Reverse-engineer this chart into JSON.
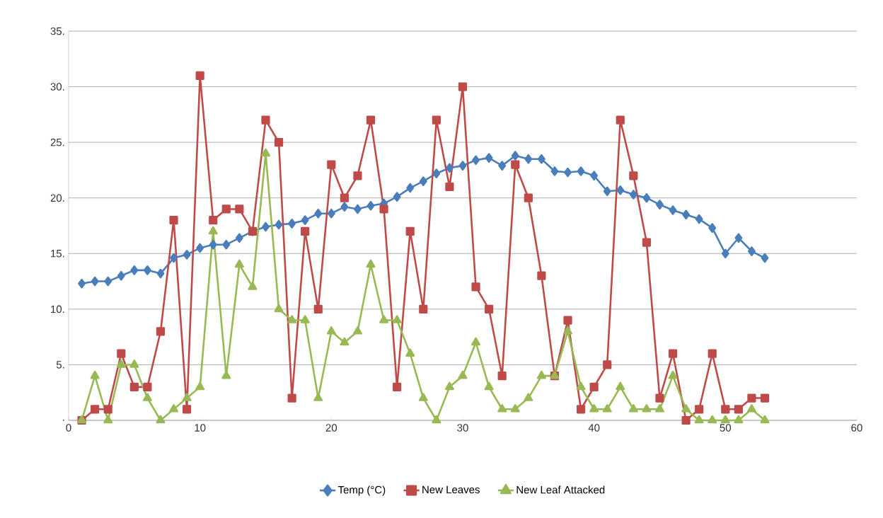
{
  "chart_data": {
    "type": "line",
    "x": [
      1,
      2,
      3,
      4,
      5,
      6,
      7,
      8,
      9,
      10,
      11,
      12,
      13,
      14,
      15,
      16,
      17,
      18,
      19,
      20,
      21,
      22,
      23,
      24,
      25,
      26,
      27,
      28,
      29,
      30,
      31,
      32,
      33,
      34,
      35,
      36,
      37,
      38,
      39,
      40,
      41,
      42,
      43,
      44,
      45,
      46,
      47,
      48,
      49,
      50,
      51,
      52,
      53
    ],
    "series": [
      {
        "name": "Temp (°C)",
        "color": "#4a7ebb",
        "marker": "diamond",
        "values": [
          12.3,
          12.5,
          12.5,
          13.0,
          13.5,
          13.5,
          13.2,
          14.6,
          14.9,
          15.5,
          15.8,
          15.8,
          16.4,
          17.0,
          17.4,
          17.6,
          17.7,
          18.0,
          18.6,
          18.6,
          19.2,
          19.0,
          19.3,
          19.5,
          20.1,
          20.9,
          21.5,
          22.2,
          22.7,
          22.9,
          23.4,
          23.6,
          22.9,
          23.8,
          23.5,
          23.5,
          22.4,
          22.3,
          22.4,
          22.0,
          20.6,
          20.7,
          20.3,
          20.0,
          19.4,
          18.9,
          18.5,
          18.1,
          17.3,
          15.0,
          16.4,
          15.2,
          14.6
        ]
      },
      {
        "name": "New Leaves",
        "color": "#be4b48",
        "marker": "square",
        "values": [
          0,
          1,
          1,
          6,
          3,
          3,
          8,
          18,
          1,
          31,
          18,
          19,
          19,
          17,
          27,
          25,
          2,
          17,
          10,
          23,
          20,
          22,
          27,
          19,
          3,
          17,
          10,
          27,
          21,
          30,
          12,
          10,
          4,
          23,
          20,
          13,
          4,
          9,
          1,
          3,
          5,
          27,
          22,
          16,
          2,
          6,
          0,
          1,
          6,
          1,
          1,
          2,
          2
        ]
      },
      {
        "name": "New Leaf Attacked",
        "color": "#98b954",
        "marker": "triangle",
        "values": [
          0,
          4,
          0,
          5,
          5,
          2,
          0,
          1,
          2,
          3,
          17,
          4,
          14,
          12,
          24,
          10,
          9,
          9,
          2,
          8,
          7,
          8,
          14,
          9,
          9,
          6,
          2,
          0,
          3,
          4,
          7,
          3,
          1,
          1,
          2,
          4,
          4,
          8,
          3,
          1,
          1,
          3,
          1,
          1,
          1,
          4,
          1,
          0,
          0,
          0,
          0,
          1,
          0
        ]
      }
    ],
    "xlim": [
      0,
      60
    ],
    "xticks": [
      0,
      10,
      20,
      30,
      40,
      50,
      60
    ],
    "ylim": [
      0,
      35
    ],
    "yticks": [
      {
        "value": 0,
        "label": "."
      },
      {
        "value": 5,
        "label": "5."
      },
      {
        "value": 10,
        "label": "10."
      },
      {
        "value": 15,
        "label": "15."
      },
      {
        "value": 20,
        "label": "20."
      },
      {
        "value": 25,
        "label": "25."
      },
      {
        "value": 30,
        "label": "30."
      },
      {
        "value": 35,
        "label": "35."
      }
    ],
    "grid": "y",
    "legend": "bottom",
    "line_style": "solid"
  }
}
